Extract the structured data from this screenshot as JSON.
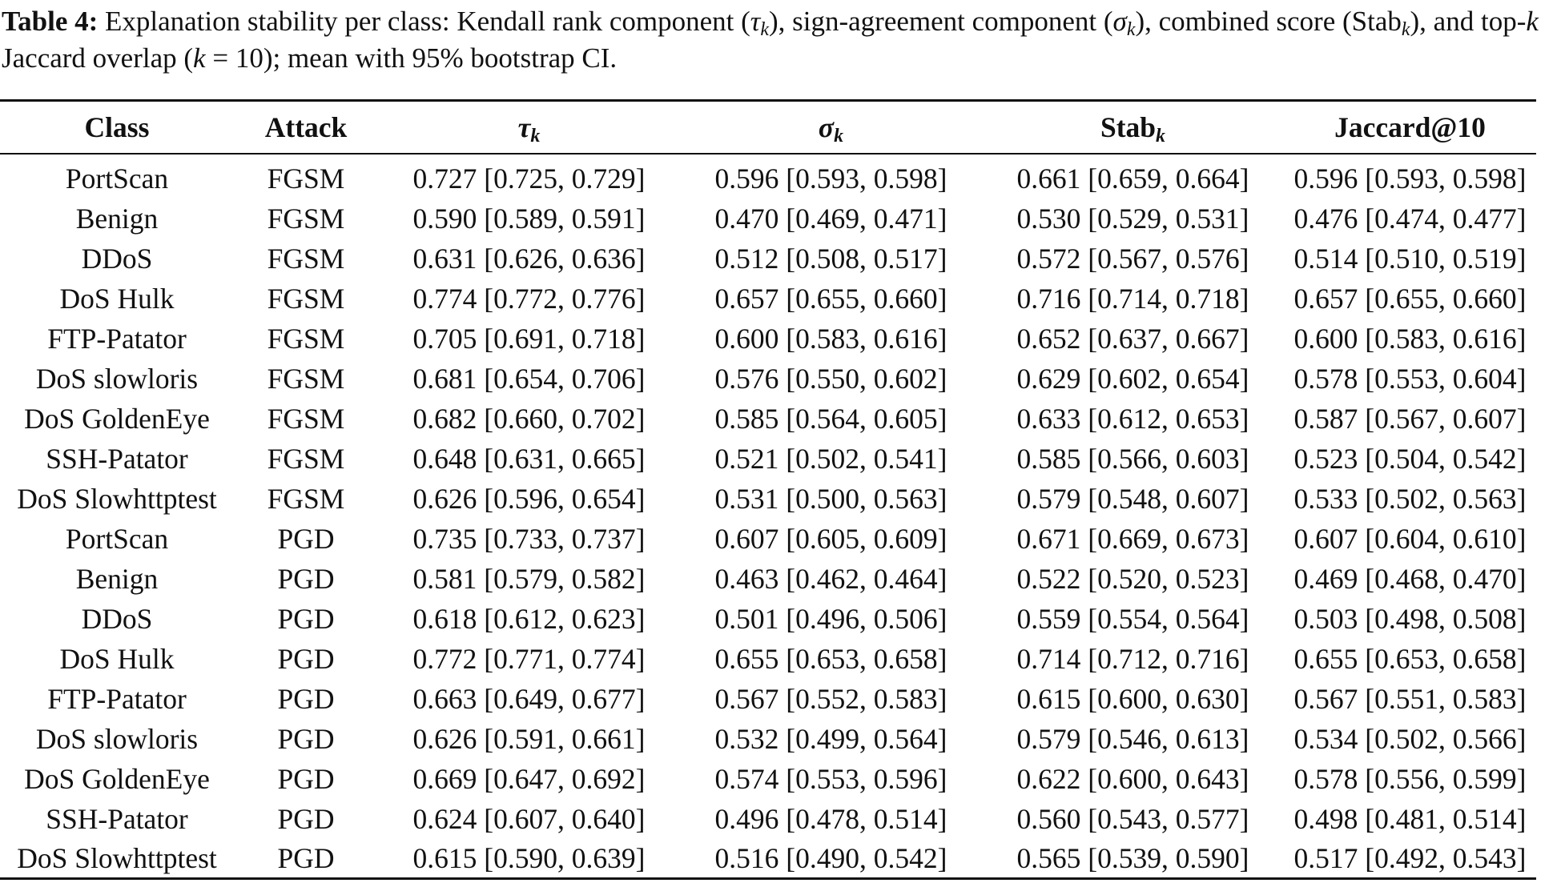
{
  "caption": {
    "label": "Table 4:",
    "p1": " Explanation stability per class: Kendall rank component (",
    "tau_sym": "τ",
    "k": "k",
    "p2": "), sign-agreement component (",
    "sigma_sym": "σ",
    "p3": "), combined score (Stab",
    "p4": "), and top-",
    "p5": " Jaccard overlap (",
    "p6": " = 10); mean with 95% bootstrap CI."
  },
  "table": {
    "headers": {
      "class": "Class",
      "attack": "Attack",
      "tau": "τ",
      "sigma": "σ",
      "stab": "Stab",
      "sub": "k",
      "jaccard": "Jaccard@10"
    },
    "rows": [
      {
        "class": "PortScan",
        "attack": "FGSM",
        "tau": "0.727 [0.725, 0.729]",
        "sigma": "0.596 [0.593, 0.598]",
        "stab": "0.661 [0.659, 0.664]",
        "jaccard": "0.596 [0.593, 0.598]"
      },
      {
        "class": "Benign",
        "attack": "FGSM",
        "tau": "0.590 [0.589, 0.591]",
        "sigma": "0.470 [0.469, 0.471]",
        "stab": "0.530 [0.529, 0.531]",
        "jaccard": "0.476 [0.474, 0.477]"
      },
      {
        "class": "DDoS",
        "attack": "FGSM",
        "tau": "0.631 [0.626, 0.636]",
        "sigma": "0.512 [0.508, 0.517]",
        "stab": "0.572 [0.567, 0.576]",
        "jaccard": "0.514 [0.510, 0.519]"
      },
      {
        "class": "DoS Hulk",
        "attack": "FGSM",
        "tau": "0.774 [0.772, 0.776]",
        "sigma": "0.657 [0.655, 0.660]",
        "stab": "0.716 [0.714, 0.718]",
        "jaccard": "0.657 [0.655, 0.660]"
      },
      {
        "class": "FTP-Patator",
        "attack": "FGSM",
        "tau": "0.705 [0.691, 0.718]",
        "sigma": "0.600 [0.583, 0.616]",
        "stab": "0.652 [0.637, 0.667]",
        "jaccard": "0.600 [0.583, 0.616]"
      },
      {
        "class": "DoS slowloris",
        "attack": "FGSM",
        "tau": "0.681 [0.654, 0.706]",
        "sigma": "0.576 [0.550, 0.602]",
        "stab": "0.629 [0.602, 0.654]",
        "jaccard": "0.578 [0.553, 0.604]"
      },
      {
        "class": "DoS GoldenEye",
        "attack": "FGSM",
        "tau": "0.682 [0.660, 0.702]",
        "sigma": "0.585 [0.564, 0.605]",
        "stab": "0.633 [0.612, 0.653]",
        "jaccard": "0.587 [0.567, 0.607]"
      },
      {
        "class": "SSH-Patator",
        "attack": "FGSM",
        "tau": "0.648 [0.631, 0.665]",
        "sigma": "0.521 [0.502, 0.541]",
        "stab": "0.585 [0.566, 0.603]",
        "jaccard": "0.523 [0.504, 0.542]"
      },
      {
        "class": "DoS Slowhttptest",
        "attack": "FGSM",
        "tau": "0.626 [0.596, 0.654]",
        "sigma": "0.531 [0.500, 0.563]",
        "stab": "0.579 [0.548, 0.607]",
        "jaccard": "0.533 [0.502, 0.563]"
      },
      {
        "class": "PortScan",
        "attack": "PGD",
        "tau": "0.735 [0.733, 0.737]",
        "sigma": "0.607 [0.605, 0.609]",
        "stab": "0.671 [0.669, 0.673]",
        "jaccard": "0.607 [0.604, 0.610]"
      },
      {
        "class": "Benign",
        "attack": "PGD",
        "tau": "0.581 [0.579, 0.582]",
        "sigma": "0.463 [0.462, 0.464]",
        "stab": "0.522 [0.520, 0.523]",
        "jaccard": "0.469 [0.468, 0.470]"
      },
      {
        "class": "DDoS",
        "attack": "PGD",
        "tau": "0.618 [0.612, 0.623]",
        "sigma": "0.501 [0.496, 0.506]",
        "stab": "0.559 [0.554, 0.564]",
        "jaccard": "0.503 [0.498, 0.508]"
      },
      {
        "class": "DoS Hulk",
        "attack": "PGD",
        "tau": "0.772 [0.771, 0.774]",
        "sigma": "0.655 [0.653, 0.658]",
        "stab": "0.714 [0.712, 0.716]",
        "jaccard": "0.655 [0.653, 0.658]"
      },
      {
        "class": "FTP-Patator",
        "attack": "PGD",
        "tau": "0.663 [0.649, 0.677]",
        "sigma": "0.567 [0.552, 0.583]",
        "stab": "0.615 [0.600, 0.630]",
        "jaccard": "0.567 [0.551, 0.583]"
      },
      {
        "class": "DoS slowloris",
        "attack": "PGD",
        "tau": "0.626 [0.591, 0.661]",
        "sigma": "0.532 [0.499, 0.564]",
        "stab": "0.579 [0.546, 0.613]",
        "jaccard": "0.534 [0.502, 0.566]"
      },
      {
        "class": "DoS GoldenEye",
        "attack": "PGD",
        "tau": "0.669 [0.647, 0.692]",
        "sigma": "0.574 [0.553, 0.596]",
        "stab": "0.622 [0.600, 0.643]",
        "jaccard": "0.578 [0.556, 0.599]"
      },
      {
        "class": "SSH-Patator",
        "attack": "PGD",
        "tau": "0.624 [0.607, 0.640]",
        "sigma": "0.496 [0.478, 0.514]",
        "stab": "0.560 [0.543, 0.577]",
        "jaccard": "0.498 [0.481, 0.514]"
      },
      {
        "class": "DoS Slowhttptest",
        "attack": "PGD",
        "tau": "0.615 [0.590, 0.639]",
        "sigma": "0.516 [0.490, 0.542]",
        "stab": "0.565 [0.539, 0.590]",
        "jaccard": "0.517 [0.492, 0.543]"
      }
    ]
  }
}
